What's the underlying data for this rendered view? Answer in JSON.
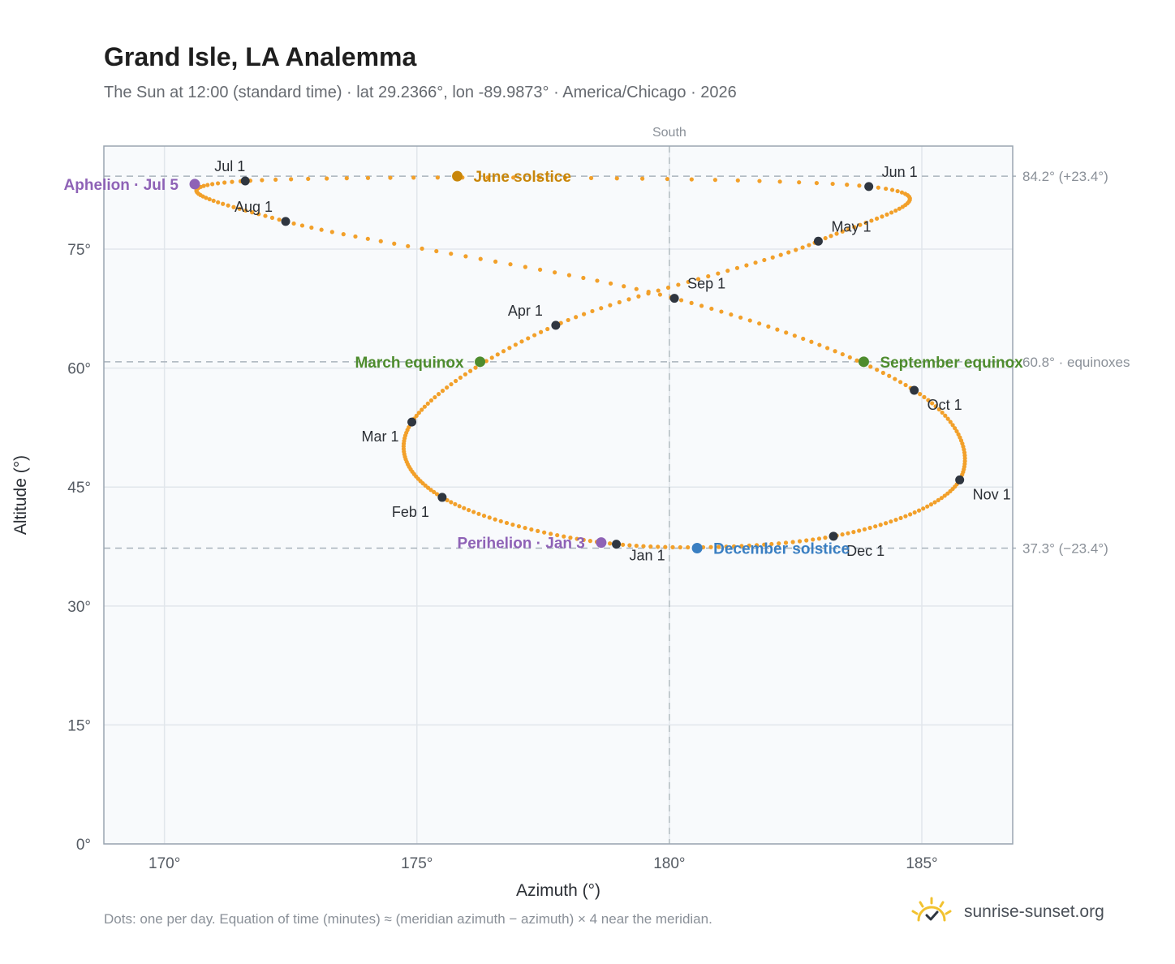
{
  "header": {
    "title": "Grand Isle, LA Analemma",
    "subtitle": "The Sun at 12:00 (standard time) · lat 29.2366°, lon -89.9873° · America/Chicago · 2026"
  },
  "footer": {
    "note": "Dots: one per day. Equation of time (minutes) ≈ (meridian azimuth − azimuth) × 4 near the meridian.",
    "brand": "sunrise-sunset.org",
    "brand_icon": "sun-logo-icon"
  },
  "colors": {
    "curve": "#f2a02a",
    "month_marker": "#2f3640",
    "solstice_june": "#c8860a",
    "solstice_december": "#3a7fc2",
    "equinox": "#4e8c2e",
    "apsis": "#8e62b6",
    "reference_line": "#a9b3bc",
    "plot_bg": "#f8fafc"
  },
  "chart_data": {
    "type": "scatter",
    "xlabel": "Azimuth (°)",
    "ylabel": "Altitude (°)",
    "xlim": [
      168.8,
      186.8
    ],
    "ylim": [
      0,
      88
    ],
    "x_ticks": [
      170,
      175,
      180,
      185
    ],
    "x_tick_labels": [
      "170°",
      "175°",
      "180°",
      "185°"
    ],
    "y_ticks": [
      0,
      15,
      30,
      45,
      60,
      75
    ],
    "y_tick_labels": [
      "0°",
      "15°",
      "30°",
      "45°",
      "60°",
      "75°"
    ],
    "grid": true,
    "meridian": {
      "azimuth": 180,
      "label": "South"
    },
    "reference_lines": [
      {
        "altitude": 84.2,
        "label": "84.2° (+23.4°)"
      },
      {
        "altitude": 60.8,
        "label": "60.8° · equinoxes"
      },
      {
        "altitude": 37.3,
        "label": "37.3° (−23.4°)"
      }
    ],
    "month_markers": [
      {
        "label": "Jan 1",
        "azimuth": 178.95,
        "altitude": 37.8
      },
      {
        "label": "Feb 1",
        "azimuth": 175.5,
        "altitude": 43.7
      },
      {
        "label": "Mar 1",
        "azimuth": 174.9,
        "altitude": 53.2
      },
      {
        "label": "Apr 1",
        "azimuth": 177.75,
        "altitude": 65.4
      },
      {
        "label": "May 1",
        "azimuth": 182.95,
        "altitude": 76.0
      },
      {
        "label": "Jun 1",
        "azimuth": 183.95,
        "altitude": 82.9
      },
      {
        "label": "Jul 1",
        "azimuth": 171.6,
        "altitude": 83.6
      },
      {
        "label": "Aug 1",
        "azimuth": 172.4,
        "altitude": 78.5
      },
      {
        "label": "Sep 1",
        "azimuth": 180.1,
        "altitude": 68.8
      },
      {
        "label": "Oct 1",
        "azimuth": 184.85,
        "altitude": 57.2
      },
      {
        "label": "Nov 1",
        "azimuth": 185.75,
        "altitude": 45.9
      },
      {
        "label": "Dec 1",
        "azimuth": 183.25,
        "altitude": 38.8
      }
    ],
    "events": [
      {
        "label": "June solstice",
        "azimuth": 175.8,
        "altitude": 84.2,
        "kind": "solstice_june"
      },
      {
        "label": "December solstice",
        "azimuth": 180.55,
        "altitude": 37.3,
        "kind": "solstice_december"
      },
      {
        "label": "March equinox",
        "azimuth": 176.25,
        "altitude": 60.8,
        "kind": "equinox"
      },
      {
        "label": "September equinox",
        "azimuth": 183.85,
        "altitude": 60.8,
        "kind": "equinox"
      },
      {
        "label": "Aphelion · Jul 5",
        "azimuth": 170.6,
        "altitude": 83.2,
        "kind": "apsis"
      },
      {
        "label": "Perihelion · Jan 3",
        "azimuth": 178.65,
        "altitude": 38.0,
        "kind": "apsis"
      }
    ]
  }
}
